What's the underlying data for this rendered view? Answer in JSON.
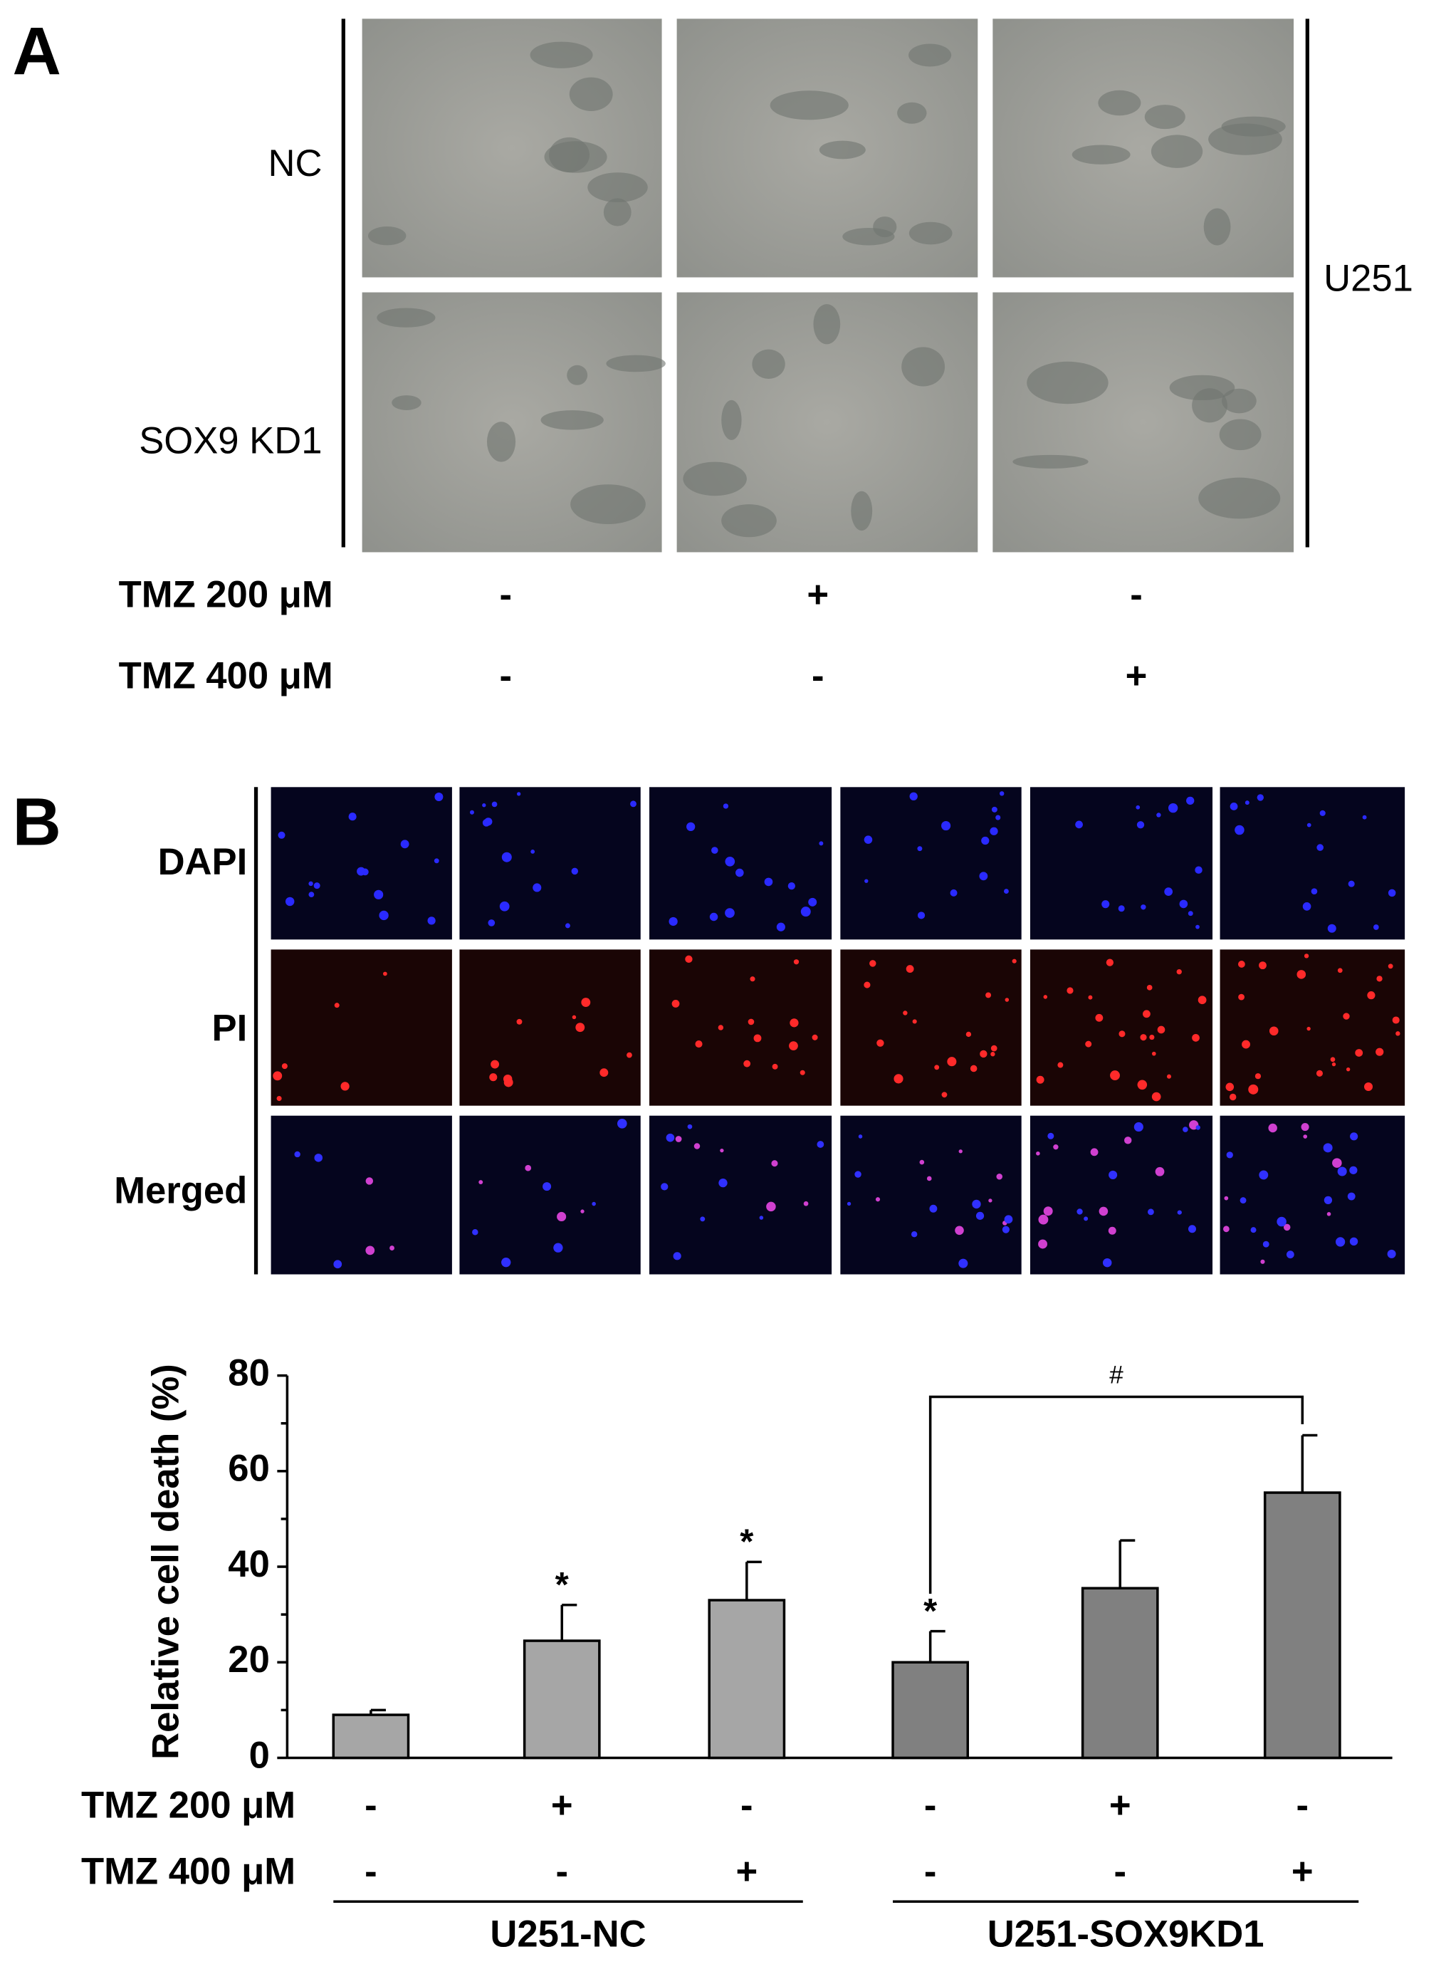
{
  "panel_a": {
    "label": "A",
    "rows": [
      "NC",
      "SOX9 KD1"
    ],
    "side_label": "U251",
    "treatments": [
      {
        "name": "TMZ 200 μM",
        "signs": [
          "-",
          "+",
          "-"
        ]
      },
      {
        "name": "TMZ 400 μM",
        "signs": [
          "-",
          "-",
          "+"
        ]
      }
    ]
  },
  "panel_b": {
    "label": "B",
    "rows": [
      "DAPI",
      "PI",
      "Merged"
    ]
  },
  "chart_data": {
    "type": "bar",
    "ylabel": "Relative cell death (%)",
    "categories": [
      null,
      null,
      null,
      null,
      null,
      null
    ],
    "values": [
      9,
      24.5,
      33,
      20,
      35.5,
      55.5
    ],
    "errors": [
      1,
      7.5,
      8,
      6.5,
      10,
      12
    ],
    "colors": [
      "#a6a6a6",
      "#a6a6a6",
      "#a6a6a6",
      "#808080",
      "#808080",
      "#808080"
    ],
    "marks": [
      null,
      "*",
      "*",
      "*",
      null,
      null
    ],
    "bracket": {
      "label": "#",
      "from": 3,
      "to": 5
    },
    "ylim": [
      0,
      80
    ],
    "yticks": [
      0,
      20,
      40,
      60,
      80
    ],
    "yminor": [
      10,
      30,
      50,
      70
    ],
    "treatments": [
      {
        "name": "TMZ 200 μM",
        "signs": [
          "-",
          "+",
          "-",
          "-",
          "+",
          "-"
        ]
      },
      {
        "name": "TMZ 400 μM",
        "signs": [
          "-",
          "-",
          "+",
          "-",
          "-",
          "+"
        ]
      }
    ],
    "groups": [
      {
        "label": "U251-NC",
        "from": 0,
        "to": 2
      },
      {
        "label": "U251-SOX9KD1",
        "from": 3,
        "to": 5
      }
    ]
  }
}
